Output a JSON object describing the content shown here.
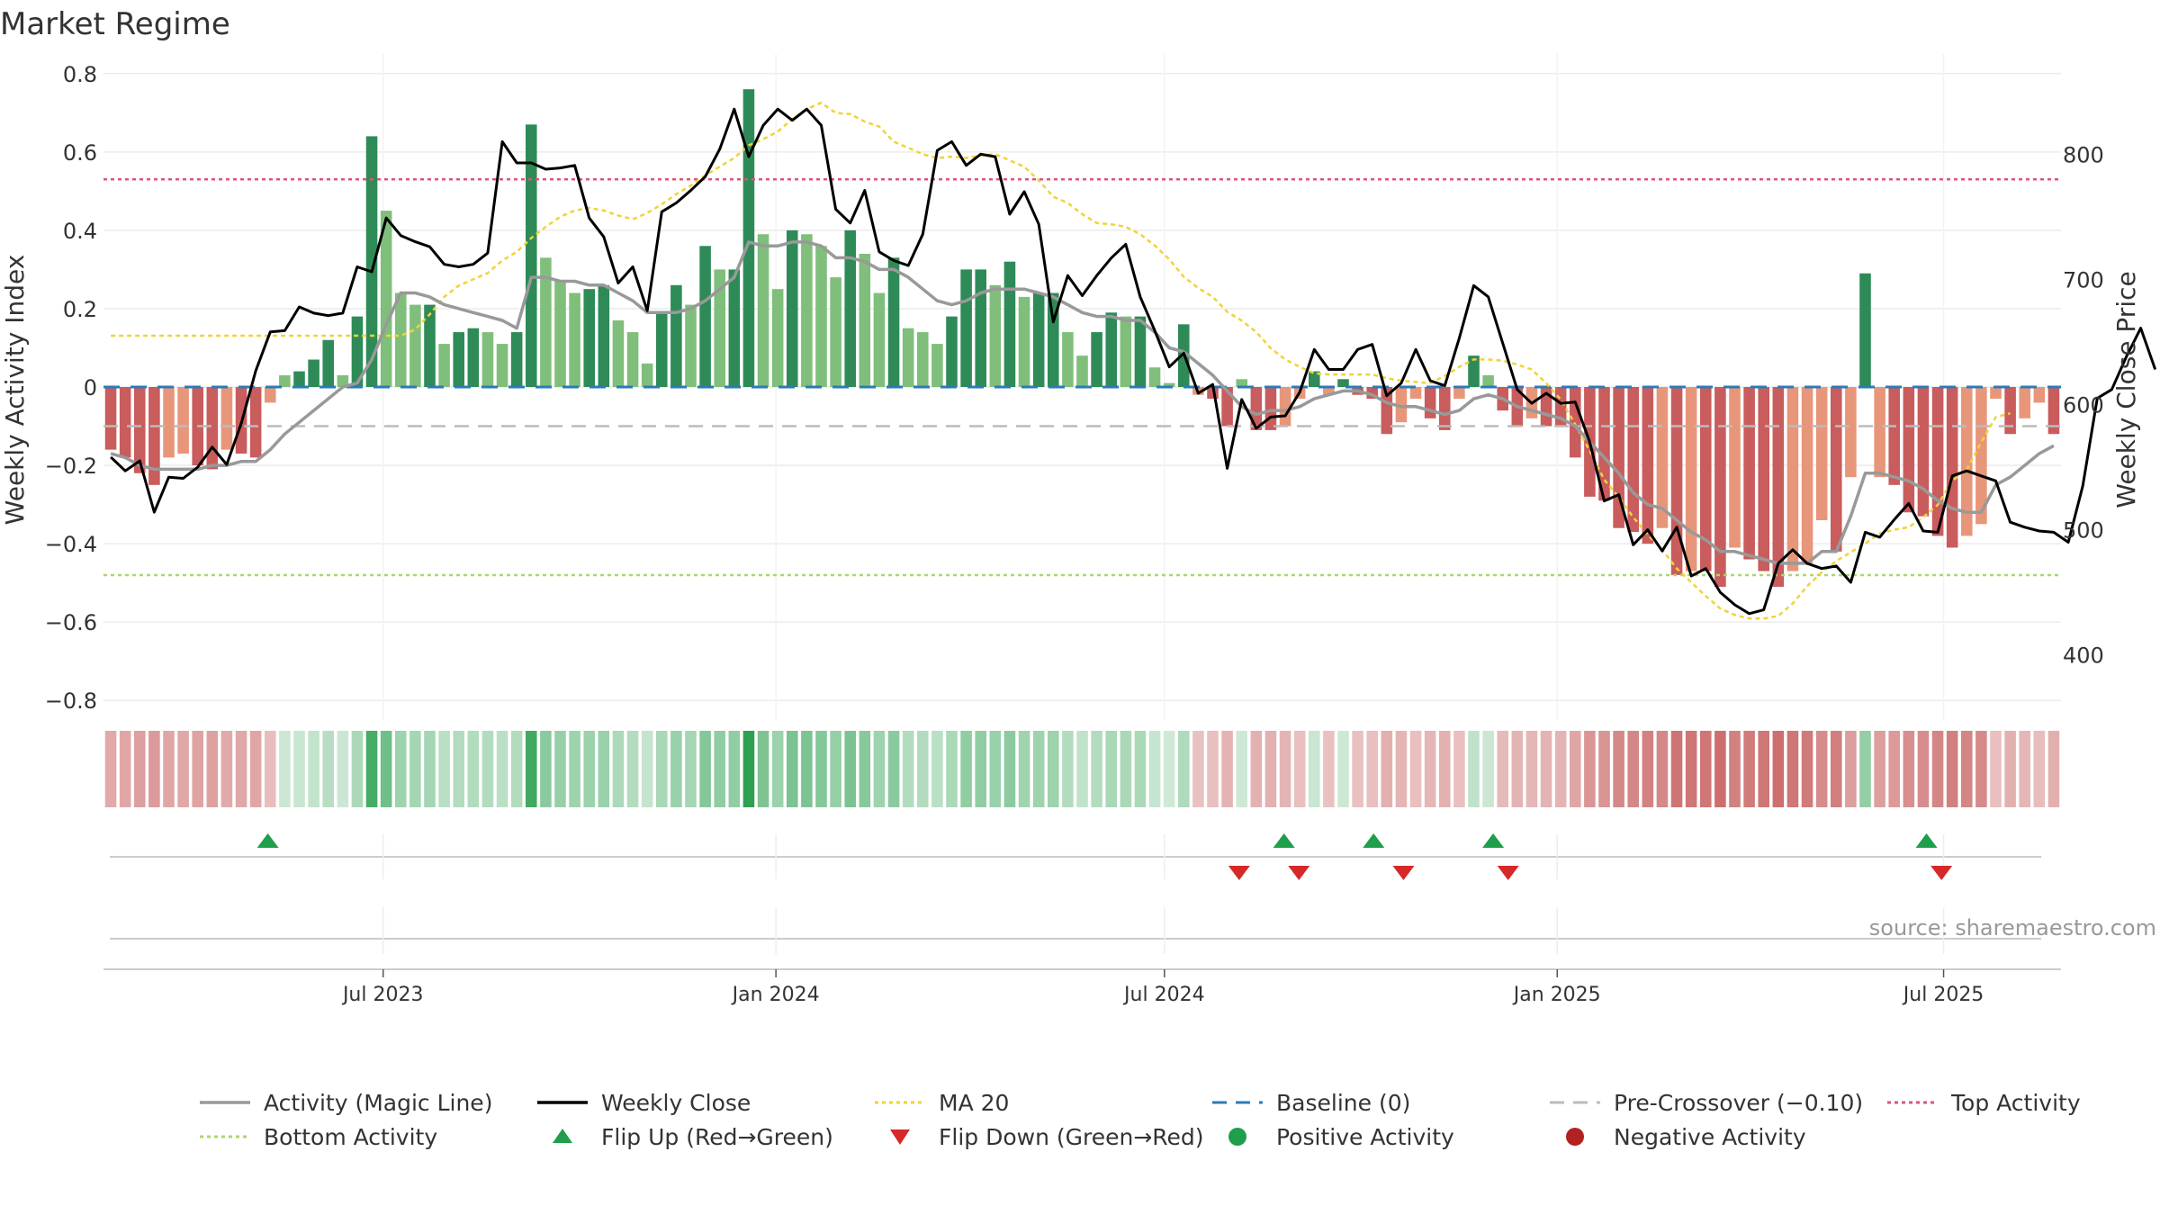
{
  "chart_data": {
    "type": "bar",
    "title": "Market Regime",
    "source": "source: sharemaestro.com",
    "ylabel_left": "Weekly Activity Index",
    "ylabel_right": "Weekly Close Price",
    "ylim_left": [
      -0.85,
      0.85
    ],
    "ylim_right": [
      348,
      880
    ],
    "yticks_left": [
      0.8,
      0.6,
      0.4,
      0.2,
      0,
      -0.2,
      -0.4,
      -0.6,
      -0.8
    ],
    "ytick_labels_left": [
      "0.8",
      "0.6",
      "0.4",
      "0.2",
      "0",
      "−0.2",
      "−0.4",
      "−0.6",
      "−0.8"
    ],
    "yticks_right": [
      800,
      700,
      600,
      500,
      400
    ],
    "ytick_labels_right": [
      "800",
      "700",
      "600",
      "500",
      "400"
    ],
    "x_start": "2023-02-20",
    "x_end": "2025-08-25",
    "date_ticks": [
      {
        "date": "2023-07-01",
        "label": "Jul 2023"
      },
      {
        "date": "2024-01-01",
        "label": "Jan 2024"
      },
      {
        "date": "2024-07-01",
        "label": "Jul 2024"
      },
      {
        "date": "2025-01-01",
        "label": "Jan 2025"
      },
      {
        "date": "2025-07-01",
        "label": "Jul 2025"
      }
    ],
    "reference_lines": {
      "top_activity": 0.53,
      "bottom_activity": -0.48,
      "baseline": 0,
      "pre_crossover": -0.1
    },
    "colors": {
      "strong_green": "#2e8b57",
      "light_green": "#7fbf7b",
      "strong_red": "#c95c5c",
      "light_red": "#e8967a",
      "close": "#000000",
      "magic": "#999999",
      "ma20": "#f0d33a",
      "baseline": "#2b7bb9",
      "pre": "#bbbbbb",
      "top": "#d9577a",
      "bottom": "#a9d86e",
      "flip_up": "#1f9e4b",
      "flip_down": "#d62828"
    },
    "series": [
      {
        "name": "Activity",
        "type": "bar",
        "values": [
          -0.16,
          -0.18,
          -0.22,
          -0.25,
          -0.18,
          -0.17,
          -0.2,
          -0.21,
          -0.16,
          -0.17,
          -0.18,
          -0.04,
          0.03,
          0.04,
          0.07,
          0.12,
          0.03,
          0.18,
          0.64,
          0.45,
          0.24,
          0.21,
          0.21,
          0.11,
          0.14,
          0.15,
          0.14,
          0.11,
          0.14,
          0.67,
          0.33,
          0.27,
          0.24,
          0.25,
          0.26,
          0.17,
          0.14,
          0.06,
          0.19,
          0.26,
          0.21,
          0.36,
          0.3,
          0.3,
          0.76,
          0.39,
          0.25,
          0.4,
          0.39,
          0.36,
          0.28,
          0.4,
          0.34,
          0.24,
          0.33,
          0.15,
          0.14,
          0.11,
          0.18,
          0.3,
          0.3,
          0.26,
          0.32,
          0.23,
          0.24,
          0.24,
          0.14,
          0.08,
          0.14,
          0.19,
          0.18,
          0.18,
          0.05,
          0.01,
          0.16,
          -0.02,
          -0.03,
          -0.1,
          0.02,
          -0.11,
          -0.11,
          -0.1,
          -0.03,
          0.04,
          -0.02,
          0.02,
          -0.02,
          -0.03,
          -0.12,
          -0.09,
          -0.03,
          -0.08,
          -0.11,
          -0.03,
          0.08,
          0.03,
          -0.06,
          -0.1,
          -0.08,
          -0.1,
          -0.1,
          -0.18,
          -0.28,
          -0.29,
          -0.36,
          -0.37,
          -0.4,
          -0.36,
          -0.48,
          -0.47,
          -0.47,
          -0.51,
          -0.41,
          -0.44,
          -0.47,
          -0.51,
          -0.47,
          -0.45,
          -0.34,
          -0.42,
          -0.23,
          0.29,
          -0.23,
          -0.25,
          -0.32,
          -0.33,
          -0.38,
          -0.41,
          -0.38,
          -0.35,
          -0.03,
          -0.12,
          -0.08,
          -0.04,
          -0.12
        ]
      },
      {
        "name": "Weekly Close",
        "type": "line",
        "values": [
          558,
          547,
          555,
          514,
          542,
          541,
          550,
          566,
          552,
          585,
          627,
          658,
          659,
          678,
          673,
          671,
          673,
          710,
          706,
          749,
          735,
          730,
          726,
          712,
          710,
          712,
          721,
          810,
          793,
          793,
          788,
          789,
          791,
          749,
          734,
          697,
          710,
          675,
          754,
          761,
          771,
          782,
          804,
          836,
          798,
          823,
          836,
          827,
          836,
          823,
          756,
          745,
          771,
          722,
          715,
          711,
          736,
          803,
          810,
          791,
          800,
          798,
          752,
          770,
          744,
          666,
          703,
          687,
          703,
          717,
          728,
          686,
          659,
          630,
          641,
          609,
          616,
          549,
          604,
          581,
          590,
          591,
          610,
          644,
          628,
          628,
          644,
          648,
          607,
          617,
          644,
          619,
          615,
          653,
          695,
          686,
          649,
          612,
          601,
          609,
          601,
          602,
          570,
          523,
          528,
          488,
          500,
          483,
          502,
          463,
          469,
          450,
          440,
          433,
          436,
          473,
          484,
          473,
          469,
          471,
          458,
          498,
          494,
          508,
          521,
          499,
          498,
          543,
          547,
          543,
          539,
          506,
          502,
          499,
          498,
          490,
          535,
          605,
          612,
          638,
          661,
          628
        ]
      },
      {
        "name": "Activity (Magic Line)",
        "type": "line",
        "axis": "left",
        "values": [
          -0.17,
          -0.18,
          -0.2,
          -0.21,
          -0.21,
          -0.21,
          -0.21,
          -0.2,
          -0.2,
          -0.19,
          -0.19,
          -0.16,
          -0.12,
          -0.09,
          -0.06,
          -0.03,
          0.0,
          0.01,
          0.07,
          0.16,
          0.24,
          0.24,
          0.23,
          0.21,
          0.2,
          0.19,
          0.18,
          0.17,
          0.15,
          0.28,
          0.28,
          0.27,
          0.27,
          0.26,
          0.26,
          0.24,
          0.22,
          0.19,
          0.19,
          0.19,
          0.2,
          0.22,
          0.25,
          0.28,
          0.37,
          0.36,
          0.36,
          0.37,
          0.37,
          0.36,
          0.33,
          0.33,
          0.32,
          0.3,
          0.3,
          0.28,
          0.25,
          0.22,
          0.21,
          0.22,
          0.24,
          0.25,
          0.25,
          0.25,
          0.24,
          0.23,
          0.21,
          0.19,
          0.18,
          0.18,
          0.17,
          0.17,
          0.14,
          0.1,
          0.09,
          0.06,
          0.03,
          -0.01,
          -0.05,
          -0.07,
          -0.06,
          -0.06,
          -0.05,
          -0.03,
          -0.02,
          -0.01,
          -0.01,
          -0.02,
          -0.04,
          -0.05,
          -0.05,
          -0.06,
          -0.07,
          -0.06,
          -0.03,
          -0.02,
          -0.03,
          -0.05,
          -0.06,
          -0.07,
          -0.08,
          -0.1,
          -0.14,
          -0.18,
          -0.22,
          -0.27,
          -0.3,
          -0.31,
          -0.34,
          -0.37,
          -0.39,
          -0.42,
          -0.42,
          -0.43,
          -0.44,
          -0.45,
          -0.45,
          -0.45,
          -0.42,
          -0.42,
          -0.33,
          -0.22,
          -0.22,
          -0.23,
          -0.24,
          -0.26,
          -0.29,
          -0.31,
          -0.32,
          -0.32,
          -0.25,
          -0.23,
          -0.2,
          -0.17,
          -0.15
        ]
      },
      {
        "name": "MA 20",
        "type": "line",
        "values": [
          655,
          655,
          655,
          655,
          655,
          655,
          655,
          655,
          655,
          655,
          655,
          655,
          655,
          655,
          655,
          655,
          655,
          655,
          655,
          655,
          655,
          660,
          672,
          686,
          695,
          700,
          705,
          715,
          722,
          733,
          742,
          750,
          755,
          757,
          755,
          751,
          748,
          753,
          760,
          768,
          775,
          783,
          790,
          797,
          807,
          812,
          818,
          828,
          836,
          841,
          833,
          832,
          826,
          822,
          810,
          805,
          800,
          797,
          798,
          797,
          799,
          800,
          795,
          790,
          779,
          766,
          761,
          752,
          745,
          744,
          742,
          736,
          727,
          716,
          702,
          693,
          686,
          674,
          667,
          658,
          645,
          636,
          630,
          625,
          624,
          624,
          624,
          624,
          621,
          619,
          618,
          617,
          623,
          630,
          636,
          636,
          635,
          632,
          628,
          617,
          604,
          584,
          563,
          540,
          526,
          510,
          496,
          484,
          469,
          458,
          447,
          437,
          432,
          429,
          429,
          431,
          441,
          455,
          466,
          475,
          482,
          489,
          497,
          500,
          502,
          510,
          520,
          539,
          548,
          570,
          590,
          593
        ]
      },
      {
        "name": "Baseline (0)",
        "type": "reference"
      },
      {
        "name": "Pre-Crossover (−0.10)",
        "type": "reference"
      },
      {
        "name": "Top Activity",
        "type": "reference"
      },
      {
        "name": "Bottom Activity",
        "type": "reference"
      }
    ],
    "flip_up_dates": [
      "2023-05-08",
      "2024-08-26",
      "2024-10-07",
      "2024-12-02",
      "2025-06-23"
    ],
    "flip_down_dates": [
      "2024-08-05",
      "2024-09-02",
      "2024-10-21",
      "2024-12-09",
      "2025-06-30"
    ]
  },
  "legend": [
    {
      "label": "Activity (Magic Line)",
      "key": "magic",
      "style": "line"
    },
    {
      "label": "Weekly Close",
      "key": "close",
      "style": "line"
    },
    {
      "label": "MA 20",
      "key": "ma20",
      "style": "dotted"
    },
    {
      "label": "Baseline (0)",
      "key": "baseline",
      "style": "dashed"
    },
    {
      "label": "Pre-Crossover (−0.10)",
      "key": "pre",
      "style": "dashed"
    },
    {
      "label": "Top Activity",
      "key": "top",
      "style": "dotted"
    },
    {
      "label": "Bottom Activity",
      "key": "bottom",
      "style": "dotted"
    },
    {
      "label": "Flip Up (Red→Green)",
      "key": "flip_up",
      "style": "triangle-up"
    },
    {
      "label": "Flip Down (Green→Red)",
      "key": "flip_down",
      "style": "triangle-down"
    },
    {
      "label": "Positive Activity",
      "key": "flip_up",
      "style": "circle"
    },
    {
      "label": "Negative Activity",
      "key": "neg",
      "style": "circle"
    }
  ]
}
